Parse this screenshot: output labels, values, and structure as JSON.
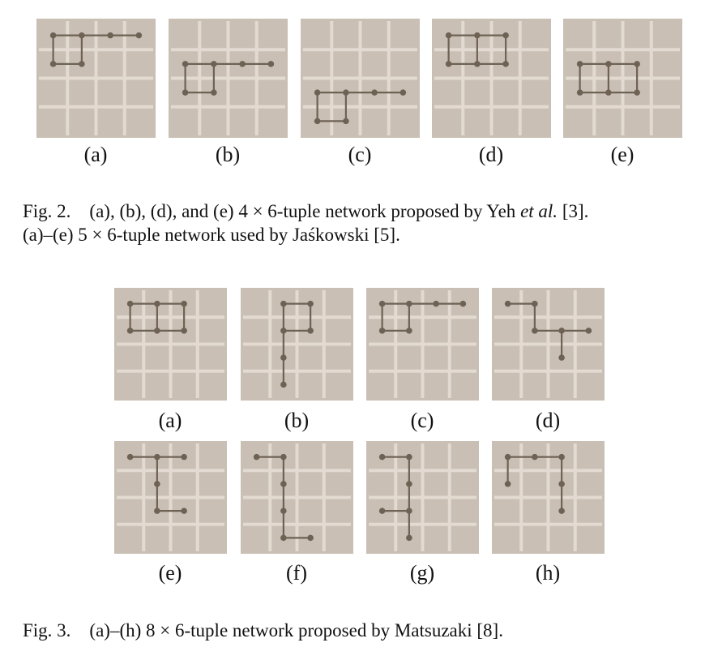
{
  "palette": {
    "board": "#c9bfb4",
    "grid": "#e3dbd1",
    "line": "#6e6254",
    "dot": "#6e6254"
  },
  "fig2": {
    "boards": [
      {
        "label": "(a)",
        "path": [
          [
            0,
            0
          ],
          [
            1,
            0
          ],
          [
            2,
            0
          ],
          [
            3,
            0
          ]
        ],
        "extra": [
          [
            [
              0,
              0
            ],
            [
              0,
              1
            ],
            [
              1,
              1
            ],
            [
              1,
              0
            ]
          ]
        ]
      },
      {
        "label": "(b)",
        "path": [
          [
            0,
            1
          ],
          [
            1,
            1
          ],
          [
            2,
            1
          ],
          [
            3,
            1
          ]
        ],
        "extra": [
          [
            [
              0,
              1
            ],
            [
              0,
              2
            ],
            [
              1,
              2
            ],
            [
              1,
              1
            ]
          ]
        ]
      },
      {
        "label": "(c)",
        "path": [
          [
            0,
            2
          ],
          [
            1,
            2
          ],
          [
            2,
            2
          ],
          [
            3,
            2
          ]
        ],
        "extra": [
          [
            [
              0,
              2
            ],
            [
              0,
              3
            ],
            [
              1,
              3
            ],
            [
              1,
              2
            ]
          ]
        ]
      },
      {
        "label": "(d)",
        "path": [
          [
            0,
            0
          ],
          [
            1,
            0
          ],
          [
            2,
            0
          ]
        ],
        "extra": [
          [
            [
              0,
              0
            ],
            [
              0,
              1
            ],
            [
              1,
              1
            ],
            [
              2,
              1
            ],
            [
              2,
              0
            ]
          ],
          [
            [
              1,
              0
            ],
            [
              1,
              1
            ]
          ]
        ]
      },
      {
        "label": "(e)",
        "path": [
          [
            0,
            1
          ],
          [
            1,
            1
          ],
          [
            2,
            1
          ]
        ],
        "extra": [
          [
            [
              0,
              1
            ],
            [
              0,
              2
            ],
            [
              1,
              2
            ],
            [
              2,
              2
            ],
            [
              2,
              1
            ]
          ],
          [
            [
              1,
              1
            ],
            [
              1,
              2
            ]
          ]
        ]
      }
    ],
    "caption_line1_pre": "Fig. 2.    (a), (b), (d), and (e) 4 × 6-tuple network proposed by Yeh ",
    "caption_line1_em": "et al.",
    "caption_line1_post": " [3].",
    "caption_line2": "(a)–(e) 5 × 6-tuple network used by Jaśkowski [5]."
  },
  "fig3": {
    "boards": [
      {
        "label": "(a)",
        "path": [
          [
            0,
            0
          ],
          [
            1,
            0
          ],
          [
            2,
            0
          ]
        ],
        "extra": [
          [
            [
              0,
              0
            ],
            [
              0,
              1
            ],
            [
              1,
              1
            ],
            [
              2,
              1
            ],
            [
              2,
              0
            ]
          ],
          [
            [
              1,
              0
            ],
            [
              1,
              1
            ]
          ]
        ]
      },
      {
        "label": "(b)",
        "path": [
          [
            1,
            0
          ],
          [
            2,
            0
          ]
        ],
        "extra": [
          [
            [
              1,
              0
            ],
            [
              1,
              1
            ],
            [
              1,
              2
            ],
            [
              1,
              3
            ]
          ],
          [
            [
              1,
              1
            ],
            [
              2,
              1
            ],
            [
              2,
              0
            ]
          ]
        ]
      },
      {
        "label": "(c)",
        "path": [
          [
            0,
            0
          ],
          [
            1,
            0
          ],
          [
            2,
            0
          ],
          [
            3,
            0
          ]
        ],
        "extra": [
          [
            [
              0,
              0
            ],
            [
              0,
              1
            ],
            [
              1,
              1
            ],
            [
              1,
              0
            ]
          ]
        ]
      },
      {
        "label": "(d)",
        "path": [
          [
            0,
            0
          ],
          [
            1,
            0
          ]
        ],
        "extra": [
          [
            [
              1,
              0
            ],
            [
              1,
              1
            ],
            [
              2,
              1
            ],
            [
              3,
              1
            ]
          ],
          [
            [
              2,
              1
            ],
            [
              2,
              2
            ]
          ]
        ]
      },
      {
        "label": "(e)",
        "path": [
          [
            0,
            0
          ],
          [
            1,
            0
          ],
          [
            2,
            0
          ]
        ],
        "extra": [
          [
            [
              1,
              0
            ],
            [
              1,
              1
            ],
            [
              1,
              2
            ],
            [
              2,
              2
            ]
          ]
        ]
      },
      {
        "label": "(f)",
        "path": [
          [
            0,
            0
          ],
          [
            1,
            0
          ]
        ],
        "extra": [
          [
            [
              1,
              0
            ],
            [
              1,
              1
            ],
            [
              1,
              2
            ],
            [
              1,
              3
            ],
            [
              2,
              3
            ]
          ]
        ]
      },
      {
        "label": "(g)",
        "path": [
          [
            0,
            0
          ],
          [
            1,
            0
          ]
        ],
        "extra": [
          [
            [
              1,
              0
            ],
            [
              1,
              1
            ],
            [
              1,
              2
            ],
            [
              1,
              3
            ]
          ],
          [
            [
              0,
              2
            ],
            [
              1,
              2
            ]
          ]
        ]
      },
      {
        "label": "(h)",
        "path": [
          [
            0,
            0
          ],
          [
            1,
            0
          ],
          [
            2,
            0
          ]
        ],
        "extra": [
          [
            [
              0,
              0
            ],
            [
              0,
              1
            ]
          ],
          [
            [
              2,
              0
            ],
            [
              2,
              1
            ],
            [
              2,
              2
            ]
          ]
        ]
      }
    ],
    "caption": "Fig. 3.    (a)–(h) 8 × 6-tuple network proposed by Matsuzaki [8]."
  }
}
